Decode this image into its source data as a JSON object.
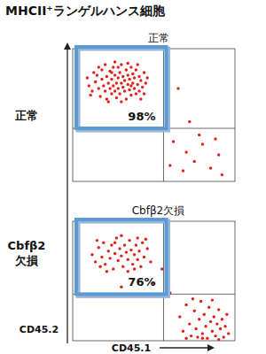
{
  "page": {
    "title": "MHCII⁺ランゲルハンス細胞"
  },
  "chart_data": [
    {
      "type": "scatter",
      "title": "正常",
      "row_label": "正常",
      "xlim": [
        0,
        100
      ],
      "ylim": [
        0,
        100
      ],
      "tick_labels": false,
      "color": "#e3211c",
      "quadrant_x": 56,
      "quadrant_y": 40,
      "annotations": [
        "98%"
      ],
      "x": [
        10,
        12,
        14,
        15,
        16,
        17,
        18,
        18,
        19,
        20,
        21,
        21,
        22,
        23,
        23,
        24,
        24,
        25,
        25,
        26,
        26,
        27,
        27,
        28,
        28,
        29,
        29,
        30,
        30,
        31,
        31,
        32,
        32,
        33,
        33,
        34,
        34,
        35,
        35,
        36,
        36,
        37,
        37,
        38,
        38,
        39,
        39,
        40,
        41,
        41,
        42,
        43,
        44,
        45,
        13,
        11,
        20,
        22,
        26,
        30,
        34,
        40,
        44,
        46,
        9,
        16,
        42,
        28,
        24,
        36,
        62,
        70,
        75,
        80,
        85,
        90,
        68,
        78,
        92,
        60,
        88,
        72,
        65,
        58
      ],
      "values": [
        72,
        68,
        75,
        80,
        70,
        64,
        77,
        84,
        72,
        68,
        79,
        62,
        74,
        83,
        70,
        66,
        77,
        72,
        86,
        80,
        68,
        74,
        63,
        78,
        70,
        82,
        66,
        74,
        88,
        71,
        79,
        68,
        76,
        84,
        62,
        73,
        80,
        69,
        77,
        86,
        65,
        74,
        81,
        70,
        78,
        66,
        84,
        73,
        79,
        68,
        76,
        71,
        82,
        74,
        82,
        65,
        88,
        60,
        90,
        60,
        89,
        88,
        66,
        78,
        78,
        86,
        62,
        86,
        82,
        72,
        30,
        22,
        15,
        28,
        10,
        20,
        8,
        35,
        5,
        12,
        32,
        45,
        70,
        50
      ]
    },
    {
      "type": "scatter",
      "title": "Cbfβ2欠損",
      "row_label": "Cbfβ2 欠損",
      "xlabel": "CD45.1",
      "ylabel": "CD45.2",
      "xlim": [
        0,
        100
      ],
      "ylim": [
        0,
        100
      ],
      "tick_labels": false,
      "color": "#e3211c",
      "quadrant_x": 56,
      "quadrant_y": 39,
      "annotations": [
        "76%"
      ],
      "x": [
        12,
        14,
        16,
        18,
        19,
        20,
        22,
        23,
        24,
        25,
        26,
        27,
        28,
        29,
        30,
        31,
        32,
        33,
        34,
        35,
        36,
        37,
        38,
        39,
        40,
        41,
        42,
        43,
        44,
        46,
        48,
        21,
        17,
        30,
        38,
        45,
        15,
        34,
        26,
        40,
        50,
        55,
        30,
        60,
        66,
        68,
        70,
        72,
        73,
        75,
        76,
        78,
        79,
        80,
        81,
        82,
        83,
        84,
        85,
        86,
        87,
        88,
        89,
        90,
        91,
        92,
        93,
        94,
        95,
        96,
        74,
        86,
        80,
        90,
        77,
        70
      ],
      "values": [
        72,
        66,
        78,
        70,
        82,
        64,
        75,
        69,
        80,
        60,
        73,
        86,
        67,
        77,
        71,
        62,
        80,
        74,
        68,
        84,
        76,
        64,
        72,
        80,
        68,
        75,
        62,
        82,
        70,
        77,
        66,
        58,
        62,
        88,
        60,
        85,
        84,
        58,
        82,
        86,
        48,
        60,
        45,
        40,
        20,
        8,
        30,
        14,
        4,
        25,
        10,
        18,
        33,
        6,
        22,
        12,
        2,
        28,
        16,
        8,
        20,
        4,
        14,
        26,
        10,
        18,
        3,
        12,
        22,
        6,
        35,
        34,
        2,
        1,
        3,
        2
      ]
    }
  ]
}
